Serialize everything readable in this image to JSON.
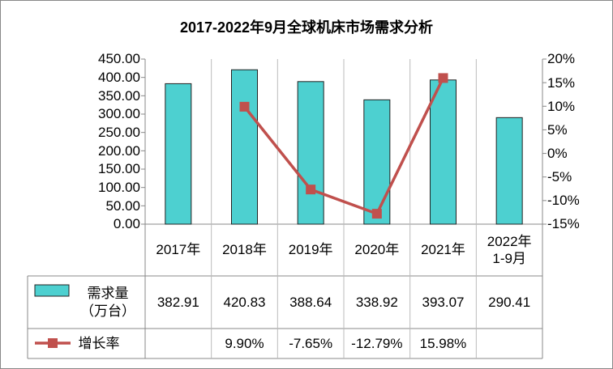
{
  "chart_data": {
    "type": "bar-line",
    "title": "2017-2022年9月全球机床市场需求分析",
    "categories": [
      "2017年",
      "2018年",
      "2019年",
      "2020年",
      "2021年",
      "2022年\n1-9月"
    ],
    "series": [
      {
        "name": "需求量\n（万台）",
        "type": "bar",
        "color": "#4dd0d0",
        "values": [
          382.91,
          420.83,
          388.64,
          338.92,
          393.07,
          290.41
        ]
      },
      {
        "name": "增长率",
        "type": "line",
        "axis": "y2",
        "color": "#c0504d",
        "values": [
          null,
          9.9,
          -7.65,
          -12.79,
          15.98,
          null
        ],
        "value_labels": [
          null,
          "9.90%",
          "-7.65%",
          "-12.79%",
          "15.98%",
          null
        ]
      }
    ],
    "ylim": [
      0,
      450
    ],
    "yticks": [
      {
        "value": 0,
        "label": "0.00"
      },
      {
        "value": 50,
        "label": "50.00"
      },
      {
        "value": 100,
        "label": "100.00"
      },
      {
        "value": 150,
        "label": "150.00"
      },
      {
        "value": 200,
        "label": "200.00"
      },
      {
        "value": 250,
        "label": "250.00"
      },
      {
        "value": 300,
        "label": "300.00"
      },
      {
        "value": 350,
        "label": "350.00"
      },
      {
        "value": 400,
        "label": "400.00"
      },
      {
        "value": 450,
        "label": "450.00"
      }
    ],
    "y2lim": [
      -15,
      20
    ],
    "y2ticks": [
      {
        "value": -15,
        "label": "-15%"
      },
      {
        "value": -10,
        "label": "-10%"
      },
      {
        "value": -5,
        "label": "-5%"
      },
      {
        "value": 0,
        "label": "0%"
      },
      {
        "value": 5,
        "label": "5%"
      },
      {
        "value": 10,
        "label": "10%"
      },
      {
        "value": 15,
        "label": "15%"
      },
      {
        "value": 20,
        "label": "20%"
      }
    ],
    "data_table": true
  }
}
